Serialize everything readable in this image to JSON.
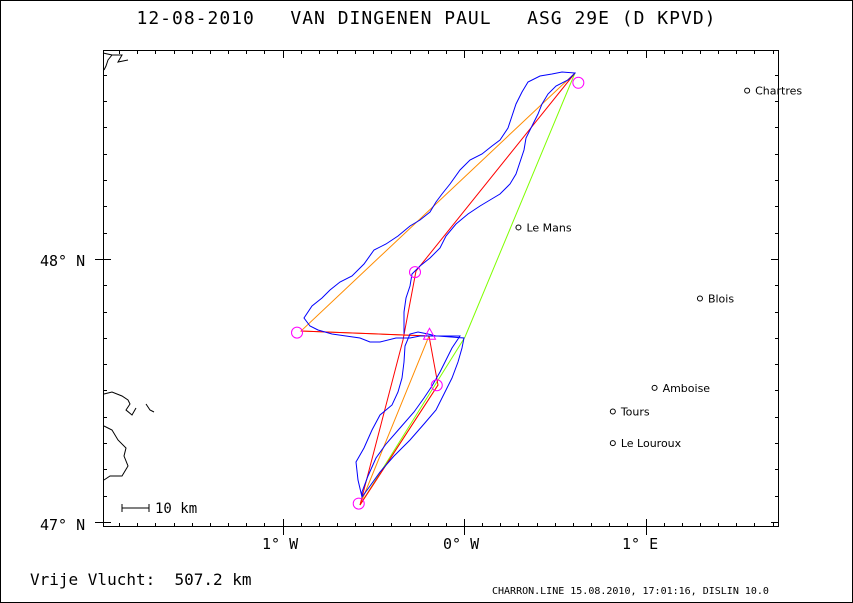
{
  "title": "12-08-2010   VAN DINGENEN PAUL   ASG 29E (D KPVD)",
  "map": {
    "lat_labels": [
      "48° N",
      "47° N"
    ],
    "lon_labels": [
      "1° W",
      "0° W",
      "1° E"
    ],
    "cities": [
      {
        "name": "Chartres",
        "lon": 1.56,
        "lat": 48.64
      },
      {
        "name": "Le Mans",
        "lon": 0.3,
        "lat": 48.12
      },
      {
        "name": "Blois",
        "lon": 1.3,
        "lat": 47.85
      },
      {
        "name": "Amboise",
        "lon": 1.05,
        "lat": 47.51
      },
      {
        "name": "Tours",
        "lon": 0.82,
        "lat": 47.42
      },
      {
        "name": "Le Louroux",
        "lon": 0.82,
        "lat": 47.3
      }
    ],
    "turnpoints": [
      {
        "lon": 0.63,
        "lat": 48.67
      },
      {
        "lon": -0.27,
        "lat": 47.95
      },
      {
        "lon": -0.92,
        "lat": 47.72
      },
      {
        "lon": -0.15,
        "lat": 47.52
      },
      {
        "lon": -0.58,
        "lat": 47.07
      }
    ],
    "start_marker": {
      "lon": -0.19,
      "lat": 47.71
    },
    "scale_label": "10 km",
    "colors": {
      "track": "#0000ff",
      "task_line": "#ff0000",
      "triangle_line": "#ff8c00",
      "closing_line": "#7fff00",
      "turnpoint": "#ff00ff",
      "coast": "#000000"
    }
  },
  "footer": {
    "distance_text": "Vrije Vlucht:  507.2 km",
    "credit": "CHARRON.LINE 15.08.2010, 17:01:16, DISLIN 10.0"
  }
}
